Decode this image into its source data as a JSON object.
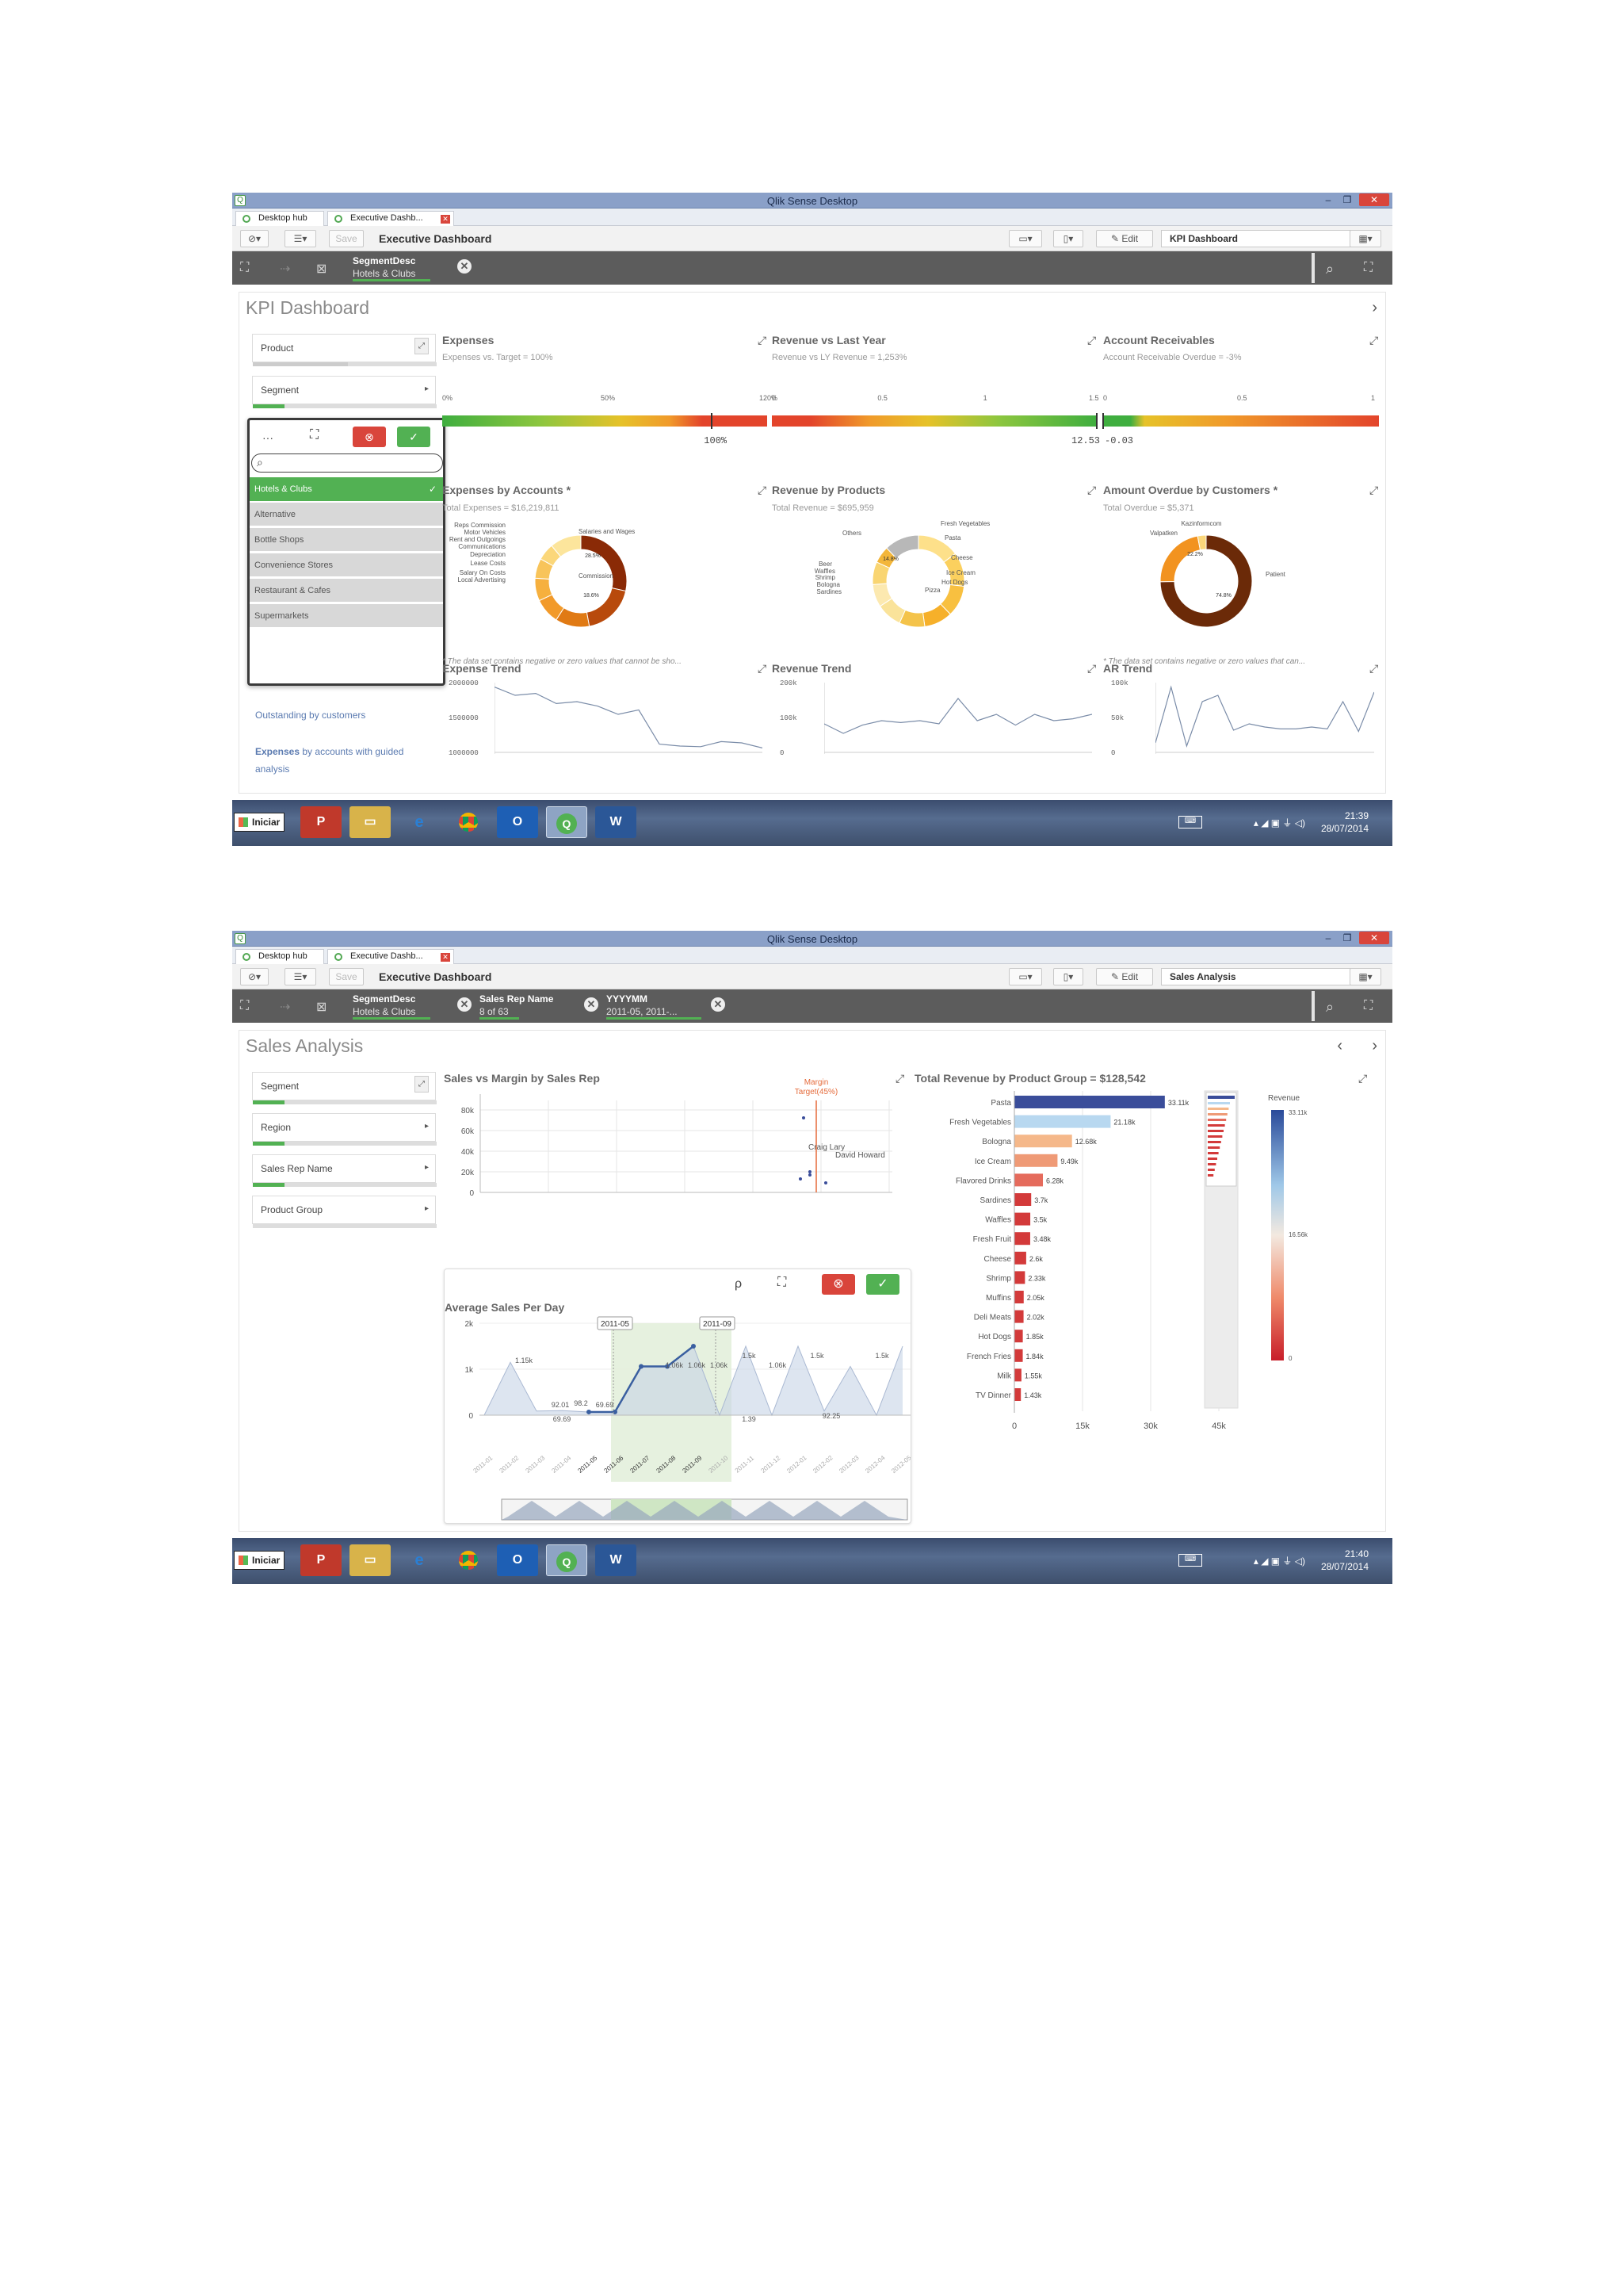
{
  "colors": {
    "green": "#52b153",
    "red": "#d9453b",
    "navy": "#3a4d9a",
    "titlebar": "#8aa0c8"
  },
  "window": {
    "title": "Qlik Sense Desktop",
    "tab_hub": "Desktop hub",
    "tab_app": "Executive Dashb..."
  },
  "toolbar": {
    "save_label": "Save",
    "app_title": "Executive Dashboard",
    "edit_label": "Edit"
  },
  "taskbar": {
    "start_label": "Iniciar",
    "apps": [
      "powerpoint-icon",
      "explorer-icon",
      "ie-icon",
      "chrome-icon",
      "outlook-icon",
      "qlik-icon",
      "word-icon"
    ]
  },
  "screen1": {
    "sheet_name": "KPI Dashboard",
    "selection": {
      "field": "SegmentDesc",
      "value": "Hotels & Clubs"
    },
    "clock": {
      "time": "21:39",
      "date": "28/07/2014"
    },
    "title": "KPI Dashboard",
    "filters": {
      "product": "Product",
      "segment": "Segment"
    },
    "segment_list": [
      "Hotels & Clubs",
      "Alternative",
      "Bottle Shops",
      "Convenience Stores",
      "Restaurant & Cafes",
      "Supermarkets"
    ],
    "links": {
      "outstanding": "Outstanding by customers",
      "expenses_bold": "Expenses",
      "expenses_rest": " by accounts with guided",
      "expenses_rest2": "analysis"
    },
    "kpis": [
      {
        "title": "Expenses",
        "sub": "Expenses vs. Target = 100%",
        "ticks": [
          "0%",
          "50%",
          "120%"
        ],
        "value": "100%",
        "value_fraction": 0.83
      },
      {
        "title": "Revenue vs Last Year",
        "sub": "Revenue vs LY Revenue = 1,253%",
        "ticks": [
          "0",
          "0.5",
          "1",
          "1.5"
        ],
        "value": "12.53",
        "value_fraction": 1.0
      },
      {
        "title": "Account Receivables",
        "sub": "Account Receivable Overdue = -3%",
        "ticks": [
          "0",
          "0.5",
          "1"
        ],
        "value": "-0.03",
        "value_fraction": 0.0
      }
    ],
    "donuts": [
      {
        "title": "Expenses by Accounts *",
        "sub": "Total Expenses = $16,219,811",
        "labels": [
          "Reps Commission",
          "Motor Vehicles",
          "Rent and Outgoings",
          "Communications",
          "Depreciation",
          "Lease Costs",
          "Salary On Costs",
          "Local Advertising",
          "Salaries and Wages",
          "Commission"
        ],
        "pct": [
          "28.5%",
          "18.6%"
        ],
        "note": "* The data set contains negative or zero values that cannot be sho..."
      },
      {
        "title": "Revenue by Products",
        "sub": "Total Revenue = $695,959",
        "labels": [
          "Fresh Vegetables",
          "Others",
          "Pasta",
          "Cheese",
          "Ice Cream",
          "Beer",
          "Waffles",
          "Shrimp",
          "Bologna",
          "Sardines",
          "Hot Dogs",
          "Pizza"
        ],
        "pct": [
          "14.8%"
        ]
      },
      {
        "title": "Amount Overdue by Customers *",
        "sub": "Total Overdue = $5,371",
        "labels": [
          "Kazinformcom",
          "Valpatken",
          "Patient"
        ],
        "pct": [
          "22.2%",
          "74.8%"
        ],
        "note": "* The data set contains negative or zero values that can..."
      }
    ],
    "trends": [
      {
        "title": "Expense Trend",
        "ticks": [
          "2000000",
          "1500000",
          "1000000"
        ]
      },
      {
        "title": "Revenue Trend",
        "ticks": [
          "200k",
          "100k",
          "0"
        ]
      },
      {
        "title": "AR Trend",
        "ticks": [
          "100k",
          "50k",
          "0"
        ]
      }
    ]
  },
  "screen2": {
    "sheet_name": "Sales Analysis",
    "selections": [
      {
        "field": "SegmentDesc",
        "value": "Hotels & Clubs"
      },
      {
        "field": "Sales Rep Name",
        "value": "8 of 63"
      },
      {
        "field": "YYYYMM",
        "value": "2011-05, 2011-..."
      }
    ],
    "clock": {
      "time": "21:40",
      "date": "28/07/2014"
    },
    "title": "Sales Analysis",
    "filters": [
      "Segment",
      "Region",
      "Sales Rep Name",
      "Product Group"
    ],
    "scatter": {
      "title": "Sales vs Margin by Sales Rep",
      "y_ticks": [
        "80k",
        "60k",
        "40k",
        "20k",
        "0"
      ],
      "ref_label": "Margin",
      "ref_label2": "Target(45%)",
      "names": [
        "Craig Lary",
        "David Howard"
      ]
    },
    "avg_sales": {
      "title": "Average Sales Per Day",
      "y_ticks": [
        "2k",
        "1k",
        "0"
      ],
      "markers": [
        "2011-05",
        "2011-09"
      ],
      "labels": [
        "1.15k",
        "92.01",
        "98.2",
        "69.69",
        "69.69",
        "1.06k",
        "1.06k",
        "1.5k",
        "1.06k",
        "1.5k",
        "1.06k",
        "1.5k",
        "1.39",
        "92.25"
      ],
      "x_labels": [
        "2011-01",
        "2011-02",
        "2011-03",
        "2011-04",
        "2011-05",
        "2011-06",
        "2011-07",
        "2011-08",
        "2011-09",
        "2011-10",
        "2011-11",
        "2011-12",
        "2012-01",
        "2012-02",
        "2012-03",
        "2012-04",
        "2012-05"
      ]
    },
    "bar": {
      "title": "Total Revenue by Product Group = $128,542",
      "legend_title": "Revenue",
      "legend_top": "33.11k",
      "legend_mid": "16.56k",
      "legend_bottom": "0",
      "x_ticks": [
        "0",
        "15k",
        "30k",
        "45k"
      ]
    }
  },
  "chart_data": {
    "type": "bar",
    "title": "Total Revenue by Product Group = $128,542",
    "categories": [
      "Pasta",
      "Fresh Vegetables",
      "Bologna",
      "Ice Cream",
      "Flavored Drinks",
      "Sardines",
      "Waffles",
      "Fresh Fruit",
      "Cheese",
      "Shrimp",
      "Muffins",
      "Deli Meats",
      "Hot Dogs",
      "French Fries",
      "Milk",
      "TV Dinner"
    ],
    "values": [
      33110,
      21180,
      12680,
      9490,
      6280,
      3700,
      3500,
      3480,
      2600,
      2330,
      2050,
      2020,
      1850,
      1840,
      1550,
      1430
    ],
    "value_labels": [
      "33.11k",
      "21.18k",
      "12.68k",
      "9.49k",
      "6.28k",
      "3.7k",
      "3.5k",
      "3.48k",
      "2.6k",
      "2.33k",
      "2.05k",
      "2.02k",
      "1.85k",
      "1.84k",
      "1.55k",
      "1.43k"
    ],
    "xlim": [
      0,
      45000
    ],
    "legend": "right"
  }
}
